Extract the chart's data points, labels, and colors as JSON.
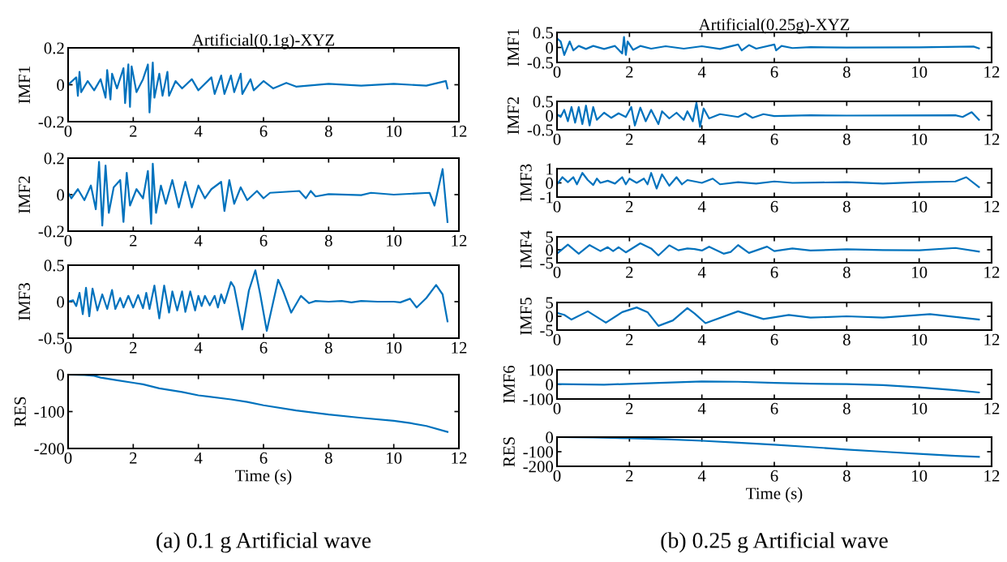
{
  "chart_data": [
    {
      "type": "line",
      "title": "Artificial(0.1g)-XYZ",
      "ylabel": "IMF1",
      "xlim": [
        0,
        12
      ],
      "xticks": [
        0,
        2,
        4,
        6,
        8,
        10,
        12
      ],
      "ylim": [
        -0.2,
        0.2
      ],
      "yticks": [
        -0.2,
        0,
        0.2
      ],
      "grid": false,
      "x": [
        0,
        0.25,
        0.3,
        0.35,
        0.4,
        0.6,
        0.8,
        1.0,
        1.15,
        1.2,
        1.3,
        1.35,
        1.5,
        1.7,
        1.75,
        1.85,
        1.9,
        1.95,
        2.1,
        2.3,
        2.45,
        2.5,
        2.6,
        2.65,
        2.8,
        2.9,
        3.05,
        3.1,
        3.3,
        3.5,
        3.8,
        4.0,
        4.4,
        4.5,
        4.7,
        4.8,
        5.0,
        5.1,
        5.3,
        5.35,
        5.6,
        5.7,
        6.0,
        6.3,
        6.7,
        7,
        8,
        9,
        10,
        11,
        11.6,
        11.65
      ],
      "series": [
        {
          "color": "#0072bd",
          "values": [
            0,
            0.04,
            -0.06,
            0.07,
            -0.04,
            0.02,
            -0.03,
            0.03,
            -0.07,
            0.08,
            -0.08,
            0.06,
            -0.02,
            0.09,
            -0.1,
            0.11,
            -0.12,
            0.1,
            -0.04,
            0.03,
            0.11,
            -0.15,
            0.12,
            -0.07,
            0.06,
            -0.06,
            0.07,
            -0.06,
            0.02,
            -0.02,
            0.03,
            -0.03,
            0.04,
            -0.05,
            0.05,
            -0.05,
            0.05,
            -0.04,
            0.06,
            -0.05,
            0.03,
            -0.03,
            0.02,
            -0.02,
            0.01,
            -0.01,
            0.005,
            -0.005,
            0.005,
            -0.005,
            0.02,
            -0.02
          ]
        }
      ]
    },
    {
      "type": "line",
      "ylabel": "IMF2",
      "xlim": [
        0,
        12
      ],
      "xticks": [
        0,
        2,
        4,
        6,
        8,
        10,
        12
      ],
      "ylim": [
        -0.2,
        0.2
      ],
      "yticks": [
        -0.2,
        0,
        0.2
      ],
      "grid": false,
      "x": [
        0,
        0.1,
        0.3,
        0.5,
        0.7,
        0.85,
        0.95,
        1.05,
        1.15,
        1.25,
        1.4,
        1.6,
        1.7,
        1.8,
        1.9,
        2.1,
        2.3,
        2.45,
        2.55,
        2.6,
        2.7,
        2.85,
        3.0,
        3.2,
        3.4,
        3.6,
        3.8,
        4.0,
        4.2,
        4.4,
        4.7,
        4.8,
        4.95,
        5.1,
        5.3,
        5.5,
        5.8,
        6.0,
        6.2,
        7.1,
        7.3,
        7.45,
        7.6,
        8,
        9,
        9.3,
        10,
        11.1,
        11.25,
        11.5,
        11.65
      ],
      "series": [
        {
          "color": "#0072bd",
          "values": [
            0.01,
            -0.02,
            0.03,
            -0.03,
            0.05,
            -0.08,
            0.18,
            -0.17,
            0.16,
            -0.1,
            0.04,
            0.08,
            -0.15,
            0.12,
            -0.06,
            0.03,
            -0.02,
            0.13,
            -0.16,
            0.17,
            -0.1,
            0.05,
            -0.05,
            0.08,
            -0.07,
            0.07,
            -0.07,
            0.05,
            -0.02,
            0.03,
            0.07,
            -0.09,
            0.08,
            -0.05,
            0.04,
            -0.03,
            0.02,
            -0.02,
            0.01,
            0.02,
            -0.02,
            0.02,
            -0.01,
            0.003,
            -0.003,
            0.01,
            0,
            0.01,
            -0.06,
            0.14,
            -0.15
          ]
        }
      ]
    },
    {
      "type": "line",
      "ylabel": "IMF3",
      "xlim": [
        0,
        12
      ],
      "xticks": [
        0,
        2,
        4,
        6,
        8,
        10,
        12
      ],
      "ylim": [
        -0.5,
        0.5
      ],
      "yticks": [
        -0.5,
        0,
        0.5
      ],
      "grid": false,
      "x": [
        0,
        0.15,
        0.25,
        0.35,
        0.45,
        0.55,
        0.65,
        0.75,
        0.9,
        1.05,
        1.2,
        1.35,
        1.45,
        1.6,
        1.7,
        1.85,
        2.0,
        2.15,
        2.3,
        2.4,
        2.5,
        2.65,
        2.8,
        2.95,
        3.1,
        3.2,
        3.35,
        3.5,
        3.6,
        3.75,
        3.9,
        4.0,
        4.1,
        4.2,
        4.35,
        4.5,
        4.6,
        4.7,
        4.8,
        5.0,
        5.1,
        5.35,
        5.55,
        5.75,
        5.9,
        6.1,
        6.45,
        6.6,
        6.85,
        7.15,
        7.4,
        7.6,
        8,
        8.4,
        8.7,
        9,
        9.5,
        10,
        10.2,
        10.5,
        10.7,
        11.0,
        11.3,
        11.5,
        11.65
      ],
      "series": [
        {
          "color": "#0072bd",
          "values": [
            0,
            0.02,
            -0.06,
            0.12,
            -0.17,
            0.19,
            -0.2,
            0.18,
            -0.12,
            0.1,
            -0.1,
            0.16,
            -0.1,
            0.05,
            -0.08,
            0.08,
            -0.08,
            0.09,
            -0.09,
            0.12,
            -0.1,
            0.22,
            -0.23,
            0.22,
            -0.15,
            0.14,
            -0.12,
            0.14,
            -0.14,
            0.14,
            -0.12,
            0.08,
            -0.06,
            0.08,
            -0.05,
            0.08,
            -0.08,
            0.1,
            -0.02,
            0.27,
            0.2,
            -0.38,
            0.15,
            0.43,
            0.1,
            -0.4,
            0.3,
            0.15,
            -0.15,
            0.08,
            -0.02,
            0.01,
            0,
            0.01,
            -0.01,
            0.01,
            0,
            0,
            -0.01,
            0.04,
            -0.08,
            0.05,
            0.23,
            0.1,
            -0.27
          ]
        }
      ]
    },
    {
      "type": "line",
      "ylabel": "RES",
      "xlabel": "Time (s)",
      "xlim": [
        0,
        12
      ],
      "xticks": [
        0,
        2,
        4,
        6,
        8,
        10,
        12
      ],
      "ylim": [
        -200,
        0
      ],
      "yticks": [
        -200,
        -100,
        0
      ],
      "grid": false,
      "annotations": [
        "(a) 0.1 g Artificial wave"
      ],
      "x": [
        0,
        0.5,
        0.8,
        1,
        1.5,
        2,
        2.3,
        2.8,
        3.5,
        4.0,
        5,
        5.5,
        6,
        7,
        8,
        9,
        10,
        10.5,
        11,
        11.65
      ],
      "series": [
        {
          "color": "#0072bd",
          "values": [
            0,
            -1,
            -3,
            -8,
            -15,
            -22,
            -26,
            -37,
            -47,
            -56,
            -67,
            -74,
            -83,
            -97,
            -108,
            -117,
            -125,
            -131,
            -139,
            -155
          ]
        }
      ]
    },
    {
      "type": "line",
      "title": "Artificial(0.25g)-XYZ",
      "ylabel": "IMF1",
      "xlim": [
        0,
        12
      ],
      "xticks": [
        0,
        2,
        4,
        6,
        8,
        10,
        12
      ],
      "ylim": [
        -0.5,
        0.5
      ],
      "yticks": [
        -0.5,
        0,
        0.5
      ],
      "grid": false,
      "x": [
        0,
        0.1,
        0.2,
        0.35,
        0.45,
        0.6,
        0.8,
        1,
        1.3,
        1.6,
        1.8,
        1.85,
        1.9,
        1.95,
        2.1,
        2.3,
        2.6,
        3,
        3.5,
        4,
        4.5,
        5.0,
        5.1,
        5.3,
        5.5,
        6.0,
        6.05,
        6.2,
        6.5,
        7,
        8,
        10,
        11.5,
        11.65
      ],
      "series": [
        {
          "color": "#0072bd",
          "values": [
            0.3,
            0.2,
            -0.25,
            0.2,
            -0.1,
            0.05,
            -0.05,
            0.05,
            -0.05,
            0.05,
            -0.2,
            0.35,
            -0.25,
            0.2,
            -0.08,
            0.05,
            -0.04,
            0.04,
            -0.04,
            0.04,
            -0.05,
            0.1,
            -0.1,
            0.08,
            -0.04,
            0.1,
            -0.1,
            0.05,
            -0.02,
            0.01,
            -0.005,
            0.005,
            0.03,
            -0.03
          ]
        }
      ]
    },
    {
      "type": "line",
      "ylabel": "IMF2",
      "xlim": [
        0,
        12
      ],
      "xticks": [
        0,
        2,
        4,
        6,
        8,
        10,
        12
      ],
      "ylim": [
        -0.5,
        0.5
      ],
      "yticks": [
        -0.5,
        0,
        0.5
      ],
      "grid": false,
      "x": [
        0,
        0.1,
        0.2,
        0.3,
        0.4,
        0.5,
        0.6,
        0.7,
        0.8,
        0.9,
        1.0,
        1.1,
        1.3,
        1.5,
        1.7,
        1.9,
        2.05,
        2.15,
        2.3,
        2.45,
        2.6,
        2.8,
        2.9,
        3.1,
        3.3,
        3.5,
        3.6,
        3.75,
        3.85,
        3.95,
        4.05,
        4.2,
        4.5,
        5.0,
        5.2,
        5.4,
        5.7,
        6.0,
        7,
        8,
        11,
        11.2,
        11.45,
        11.65
      ],
      "series": [
        {
          "color": "#0072bd",
          "values": [
            0.05,
            -0.05,
            0.2,
            -0.2,
            0.3,
            -0.25,
            0.3,
            -0.3,
            0.35,
            -0.35,
            0.3,
            -0.15,
            0.1,
            -0.08,
            0.08,
            -0.05,
            0.3,
            -0.35,
            0.28,
            -0.2,
            0.2,
            -0.3,
            0.15,
            -0.1,
            0.1,
            -0.15,
            0.15,
            -0.2,
            0.45,
            -0.4,
            0.25,
            -0.1,
            0.05,
            -0.05,
            0.08,
            -0.08,
            0.05,
            -0.02,
            0.01,
            0,
            0.01,
            -0.05,
            0.12,
            -0.15
          ]
        }
      ]
    },
    {
      "type": "line",
      "ylabel": "IMF3",
      "xlim": [
        0,
        12
      ],
      "xticks": [
        0,
        2,
        4,
        6,
        8,
        10,
        12
      ],
      "ylim": [
        -1,
        1
      ],
      "yticks": [
        -1,
        0,
        1
      ],
      "grid": false,
      "x": [
        0,
        0.15,
        0.3,
        0.45,
        0.55,
        0.7,
        0.85,
        1.0,
        1.1,
        1.2,
        1.4,
        1.6,
        1.8,
        1.9,
        2.0,
        2.2,
        2.4,
        2.5,
        2.6,
        2.75,
        2.9,
        3.1,
        3.3,
        3.45,
        3.6,
        4.0,
        4.3,
        4.5,
        5,
        5.5,
        6,
        6.5,
        8,
        9,
        10,
        11.0,
        11.3,
        11.65
      ],
      "series": [
        {
          "color": "#0072bd",
          "values": [
            -0.1,
            0.4,
            0.05,
            0.4,
            -0.1,
            0.7,
            0.2,
            -0.15,
            0.3,
            0,
            0.15,
            -0.05,
            0.4,
            -0.1,
            0.3,
            0,
            0.3,
            -0.1,
            0.7,
            -0.4,
            0.6,
            -0.2,
            0.4,
            -0.1,
            0.2,
            0,
            0.3,
            -0.1,
            0.05,
            -0.05,
            0.1,
            0,
            0.05,
            -0.05,
            0.05,
            0.1,
            0.4,
            -0.3
          ]
        }
      ]
    },
    {
      "type": "line",
      "ylabel": "IMF4",
      "xlim": [
        0,
        12
      ],
      "xticks": [
        0,
        2,
        4,
        6,
        8,
        10,
        12
      ],
      "ylim": [
        -5,
        5
      ],
      "yticks": [
        -5,
        0,
        5
      ],
      "grid": false,
      "x": [
        0,
        0.3,
        0.6,
        0.9,
        1.2,
        1.4,
        1.55,
        1.7,
        1.9,
        2.3,
        2.6,
        2.8,
        3.1,
        3.35,
        3.6,
        3.8,
        4.0,
        4.2,
        4.6,
        4.8,
        5.0,
        5.3,
        5.8,
        6.0,
        6.5,
        7,
        8,
        9,
        10,
        11,
        11.65
      ],
      "series": [
        {
          "color": "#0072bd",
          "values": [
            -1.5,
            2,
            -1.5,
            1.8,
            -0.5,
            1,
            -0.5,
            1,
            -1,
            2.5,
            0.5,
            -2.2,
            1.7,
            -0.2,
            0.5,
            0.3,
            -0.3,
            1.2,
            -1.5,
            -0.8,
            1.8,
            -1.2,
            1.2,
            -0.5,
            0.5,
            -0.3,
            0.2,
            -0.1,
            -0.2,
            0.7,
            -0.7
          ]
        }
      ]
    },
    {
      "type": "line",
      "ylabel": "IMF5",
      "xlim": [
        0,
        12
      ],
      "xticks": [
        0,
        2,
        4,
        6,
        8,
        10,
        12
      ],
      "ylim": [
        -5,
        5
      ],
      "yticks": [
        -5,
        0,
        5
      ],
      "grid": false,
      "x": [
        0,
        0.2,
        0.4,
        0.85,
        1.35,
        1.8,
        2.2,
        2.5,
        2.8,
        3.2,
        3.6,
        3.8,
        4.1,
        5.0,
        5.7,
        6.4,
        7,
        8,
        9,
        10.3,
        11.65
      ],
      "series": [
        {
          "color": "#0072bd",
          "values": [
            1.2,
            0.5,
            -1.2,
            1.8,
            -2.3,
            1.5,
            3.2,
            1.5,
            -3.5,
            -1.5,
            3,
            1,
            -2.5,
            1.8,
            -1,
            0.5,
            -0.5,
            0,
            -0.5,
            0.8,
            -1.2
          ]
        }
      ]
    },
    {
      "type": "line",
      "ylabel": "IMF6",
      "xlim": [
        0,
        12
      ],
      "xticks": [
        0,
        2,
        4,
        6,
        8,
        10,
        12
      ],
      "ylim": [
        -100,
        100
      ],
      "yticks": [
        -100,
        0,
        100
      ],
      "grid": false,
      "x": [
        0,
        1.3,
        2.5,
        4,
        5,
        6,
        7,
        8,
        9,
        10,
        11,
        11.65
      ],
      "series": [
        {
          "color": "#0072bd",
          "values": [
            2,
            -2,
            8,
            20,
            18,
            10,
            5,
            2,
            -5,
            -20,
            -40,
            -55
          ]
        }
      ]
    },
    {
      "type": "line",
      "ylabel": "RES",
      "xlabel": "Time (s)",
      "xlim": [
        0,
        12
      ],
      "xticks": [
        0,
        2,
        4,
        6,
        8,
        10,
        12
      ],
      "ylim": [
        -200,
        0
      ],
      "yticks": [
        -200,
        -100,
        0
      ],
      "grid": false,
      "annotations": [
        "(b) 0.25 g Artificial wave"
      ],
      "x": [
        0,
        1,
        2,
        3,
        4,
        5,
        6,
        7,
        8,
        9,
        10,
        11,
        11.65
      ],
      "series": [
        {
          "color": "#0072bd",
          "values": [
            0,
            -2,
            -8,
            -15,
            -25,
            -38,
            -52,
            -68,
            -85,
            -100,
            -115,
            -128,
            -135
          ]
        }
      ]
    }
  ]
}
